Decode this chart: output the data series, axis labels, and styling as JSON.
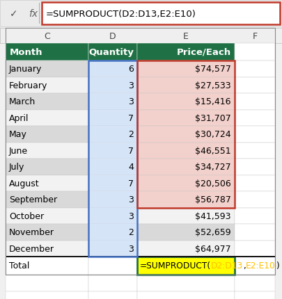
{
  "months": [
    "January",
    "February",
    "March",
    "April",
    "May",
    "June",
    "July",
    "August",
    "September",
    "October",
    "November",
    "December"
  ],
  "quantities": [
    "6",
    "3",
    "3",
    "7",
    "2",
    "7",
    "4",
    "7",
    "3",
    "3",
    "2",
    "3"
  ],
  "prices": [
    "$74,577",
    "$27,533",
    "$15,416",
    "$31,707",
    "$30,724",
    "$46,551",
    "$34,727",
    "$20,506",
    "$56,787",
    "$41,593",
    "$52,659",
    "$64,977"
  ],
  "header_bg": "#1F7145",
  "row_even_bg": "#D9D9D9",
  "row_odd_bg": "#F2F2F2",
  "col_d_tint": "#D6E4F7",
  "col_e_highlight_bg": "#F2D0CB",
  "col_d_border_color": "#4472C4",
  "col_e_border_color": "#C0392B",
  "formula_bar_border": "#C0392B",
  "formula_bar_text": "=SUMPRODUCT(D2:D13,E2:E10)",
  "total_d_color": "#FFC000",
  "total_e_color": "#FFC000",
  "total_highlight_bg": "#FFFF00",
  "total_cell_border": "#1F7145",
  "bg_color": "#FFFFFF",
  "grid_color": "#C8C8C8",
  "outer_border": "#888888",
  "formula_bar_bg": "#E8E8E8",
  "formula_box_bg": "#FFFFFF",
  "col_headers": [
    "C",
    "D",
    "E",
    "F"
  ],
  "e_range_rows": 9,
  "d_range_rows": 12
}
